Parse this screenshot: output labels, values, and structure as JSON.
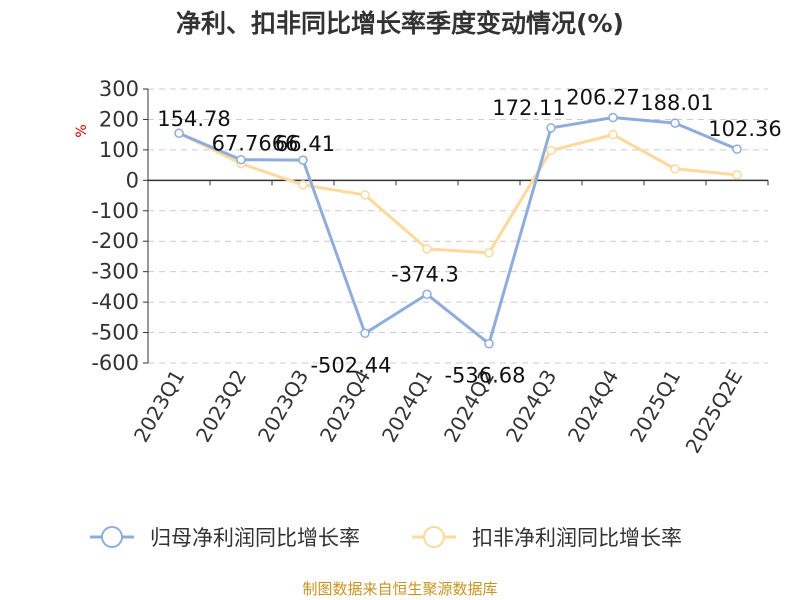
{
  "title": "净利、扣非同比增长率季度变动情况(%)",
  "source": "制图数据来自恒生聚源数据库",
  "colors": {
    "series1": "#8eaddc",
    "series2": "#fdd99b",
    "grid": "#cccccc",
    "axis": "#333333",
    "unit": "#cc0000",
    "source": "#c8941e"
  },
  "chart_data": {
    "type": "line",
    "title": "净利、扣非同比增长率季度变动情况(%)",
    "ylabel": "%",
    "ylim": [
      -600,
      300
    ],
    "yticks": [
      300,
      200,
      100,
      0,
      -100,
      -200,
      -300,
      -400,
      -500,
      -600
    ],
    "grid": true,
    "legend_position": "bottom",
    "categories": [
      "2023Q1",
      "2023Q2",
      "2023Q3",
      "2023Q4",
      "2024Q1",
      "2024Q2",
      "2024Q3",
      "2024Q4",
      "2025Q1",
      "2025Q2E"
    ],
    "series": [
      {
        "name": "归母净利润同比增长率",
        "color": "#8eaddc",
        "values": [
          154.78,
          67.7666,
          66.41,
          -502.44,
          -374.3,
          -536.68,
          172.11,
          206.27,
          188.01,
          102.36
        ],
        "labels": [
          "154.78",
          "67.7666",
          "66.41",
          "-502.44",
          "-374.3",
          "-536.68",
          "172.11",
          "206.27",
          "188.01",
          "102.36"
        ]
      },
      {
        "name": "扣非净利润同比增长率",
        "color": "#fdd99b",
        "values": [
          155,
          55,
          -15,
          -48,
          -225,
          -238,
          98,
          150,
          38,
          18
        ]
      }
    ]
  }
}
